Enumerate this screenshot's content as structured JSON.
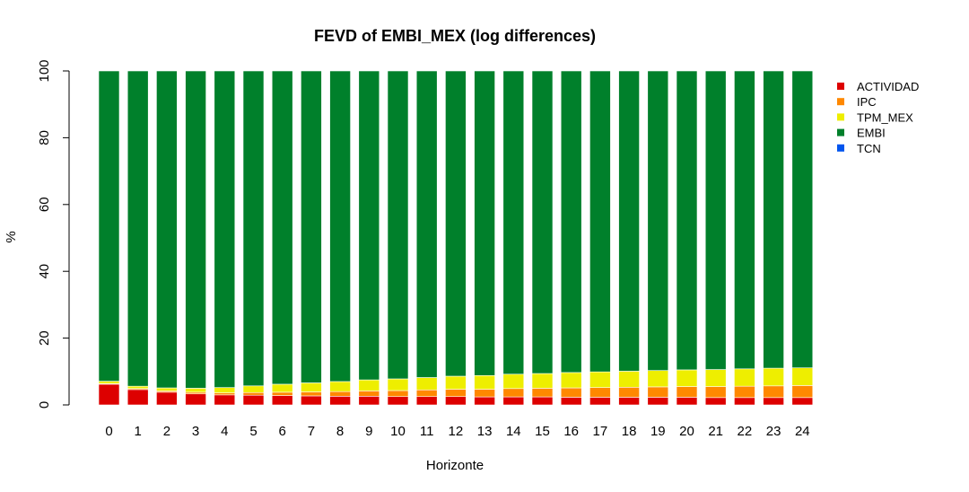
{
  "chart_data": {
    "type": "bar",
    "stacked": true,
    "title": "FEVD of EMBI_MEX (log differences)",
    "xlabel": "Horizonte",
    "ylabel": "%",
    "ylim": [
      0,
      100
    ],
    "yticks": [
      0,
      20,
      40,
      60,
      80,
      100
    ],
    "categories": [
      "0",
      "1",
      "2",
      "3",
      "4",
      "5",
      "6",
      "7",
      "8",
      "9",
      "10",
      "11",
      "12",
      "13",
      "14",
      "15",
      "16",
      "17",
      "18",
      "19",
      "20",
      "21",
      "22",
      "23",
      "24"
    ],
    "legend_position": "top-right",
    "grid": false,
    "series": [
      {
        "name": "ACTIVIDAD",
        "color": "#dd0000",
        "values": [
          6.2,
          4.6,
          3.8,
          3.3,
          3.0,
          2.9,
          2.8,
          2.7,
          2.6,
          2.6,
          2.5,
          2.5,
          2.5,
          2.4,
          2.4,
          2.4,
          2.3,
          2.3,
          2.3,
          2.3,
          2.3,
          2.2,
          2.2,
          2.2,
          2.2
        ]
      },
      {
        "name": "IPC",
        "color": "#ff8800",
        "values": [
          0.2,
          0.3,
          0.4,
          0.5,
          0.6,
          0.8,
          1.0,
          1.2,
          1.4,
          1.6,
          1.8,
          2.0,
          2.2,
          2.3,
          2.5,
          2.6,
          2.8,
          2.9,
          3.0,
          3.1,
          3.2,
          3.3,
          3.4,
          3.5,
          3.6
        ]
      },
      {
        "name": "TPM_MEX",
        "color": "#eeee00",
        "values": [
          0.7,
          0.7,
          0.9,
          1.2,
          1.6,
          2.0,
          2.4,
          2.7,
          3.0,
          3.3,
          3.5,
          3.7,
          3.9,
          4.1,
          4.3,
          4.4,
          4.6,
          4.7,
          4.8,
          4.9,
          5.0,
          5.1,
          5.2,
          5.3,
          5.3
        ]
      },
      {
        "name": "EMBI",
        "color": "#00802b",
        "values": [
          92.9,
          94.4,
          94.9,
          95.0,
          94.8,
          94.3,
          93.8,
          93.4,
          93.0,
          92.5,
          92.2,
          91.8,
          91.4,
          91.2,
          90.8,
          90.6,
          90.3,
          90.1,
          89.9,
          89.7,
          89.5,
          89.4,
          89.2,
          89.0,
          88.9
        ]
      },
      {
        "name": "TCN",
        "color": "#0055ee",
        "values": [
          0,
          0,
          0,
          0,
          0,
          0,
          0,
          0,
          0,
          0,
          0,
          0,
          0,
          0,
          0,
          0,
          0,
          0,
          0,
          0,
          0,
          0,
          0,
          0,
          0
        ]
      }
    ]
  }
}
